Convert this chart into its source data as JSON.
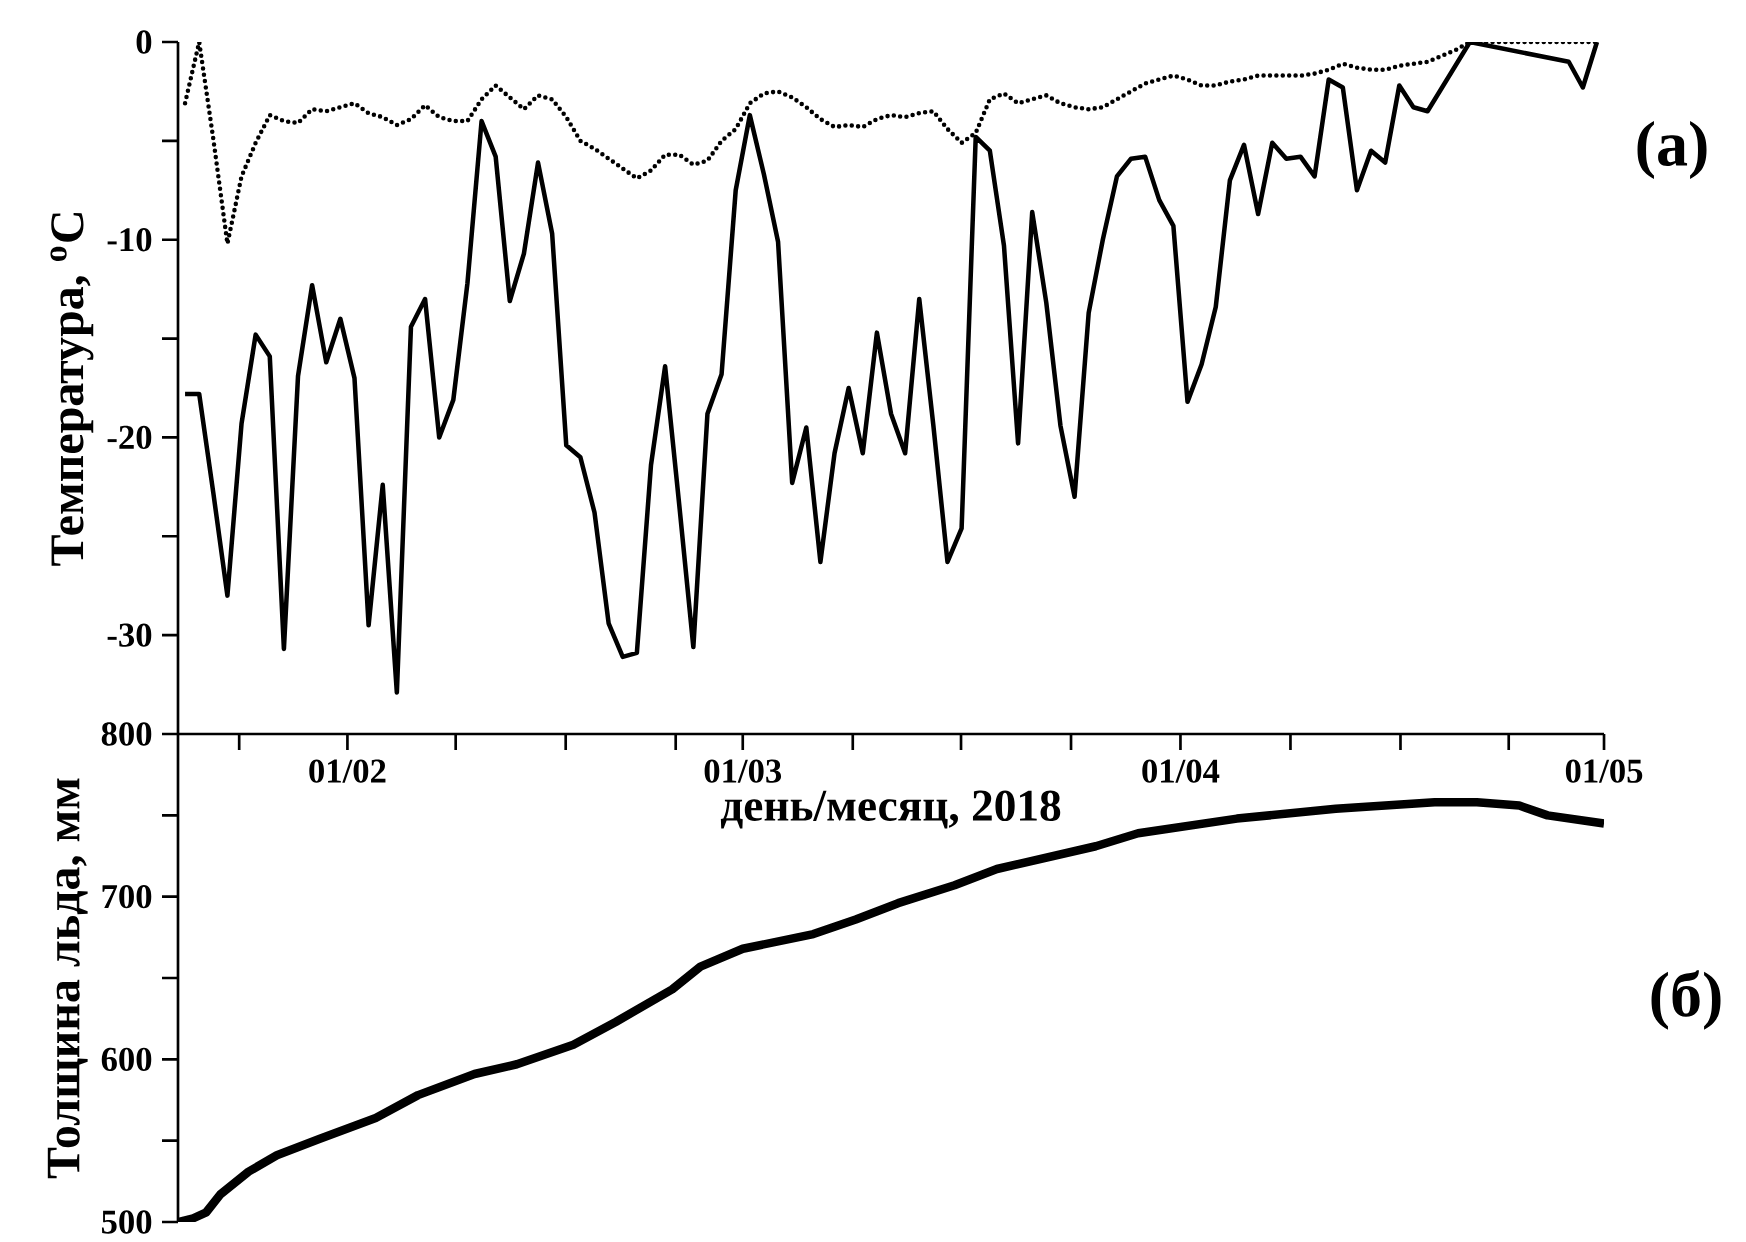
{
  "chart_data": [
    {
      "type": "line",
      "xlabel": "день/месяц, 2018",
      "ylabel": "Температура, $^{o}$C",
      "annotations": [
        "(a)"
      ],
      "xlim": [
        "2018-01-20",
        "2018-05-01"
      ],
      "xticks": [
        {
          "value": "2018-01-24T08:00",
          "label": null
        },
        {
          "value": "2018-02-01",
          "label": "01/02"
        },
        {
          "value": "2018-02-08T16:00",
          "label": null
        },
        {
          "value": "2018-02-16T11:00",
          "label": null
        },
        {
          "value": "2018-02-24T06:00",
          "label": null
        },
        {
          "value": "2018-03-01",
          "label": "01/03"
        },
        {
          "value": "2018-03-08T19:00",
          "label": null
        },
        {
          "value": "2018-03-16T11:00",
          "label": null
        },
        {
          "value": "2018-03-24T06:00",
          "label": null
        },
        {
          "value": "2018-04-01",
          "label": "01/04"
        },
        {
          "value": "2018-04-08T19:00",
          "label": null
        },
        {
          "value": "2018-04-16T14:00",
          "label": null
        },
        {
          "value": "2018-04-24T06:00",
          "label": null
        },
        {
          "value": "2018-05-01",
          "label": "01/05"
        }
      ],
      "ylim": [
        -35,
        0
      ],
      "yticks": [
        0,
        {
          "value": -5,
          "label": null
        },
        -10,
        {
          "value": -15,
          "label": null
        },
        -20,
        {
          "value": -25,
          "label": null
        },
        -30
      ],
      "series": [
        {
          "color": "#000000",
          "line_style": "solid",
          "x": [
            "2018-01-20T12:00",
            "2018-01-21T12:00",
            "2018-01-22T12:00",
            "2018-01-23T12:00",
            "2018-01-24T12:00",
            "2018-01-25T12:00",
            "2018-01-26T12:00",
            "2018-01-27T12:00",
            "2018-01-28T12:00",
            "2018-01-29T12:00",
            "2018-01-30T12:00",
            "2018-01-31T12:00",
            "2018-02-01T12:00",
            "2018-02-02T12:00",
            "2018-02-03T12:00",
            "2018-02-04T12:00",
            "2018-02-05T12:00",
            "2018-02-06T12:00",
            "2018-02-07T12:00",
            "2018-02-08T12:00",
            "2018-02-09T12:00",
            "2018-02-10T12:00",
            "2018-02-11T12:00",
            "2018-02-12T12:00",
            "2018-02-13T12:00",
            "2018-02-14T12:00",
            "2018-02-15T12:00",
            "2018-02-16T12:00",
            "2018-02-17T12:00",
            "2018-02-18T12:00",
            "2018-02-19T12:00",
            "2018-02-20T12:00",
            "2018-02-21T12:00",
            "2018-02-22T12:00",
            "2018-02-23T12:00",
            "2018-02-24T12:00",
            "2018-02-25T12:00",
            "2018-02-26T12:00",
            "2018-02-27T12:00",
            "2018-02-28T12:00",
            "2018-03-01T12:00",
            "2018-03-02T12:00",
            "2018-03-03T12:00",
            "2018-03-04T12:00",
            "2018-03-05T12:00",
            "2018-03-06T12:00",
            "2018-03-07T12:00",
            "2018-03-08T12:00",
            "2018-03-09T12:00",
            "2018-03-10T12:00",
            "2018-03-11T12:00",
            "2018-03-12T12:00",
            "2018-03-13T12:00",
            "2018-03-14T12:00",
            "2018-03-15T12:00",
            "2018-03-16T12:00",
            "2018-03-17T12:00",
            "2018-03-18T12:00",
            "2018-03-19T12:00",
            "2018-03-20T12:00",
            "2018-03-21T12:00",
            "2018-03-22T12:00",
            "2018-03-23T12:00",
            "2018-03-24T12:00",
            "2018-03-25T12:00",
            "2018-03-26T12:00",
            "2018-03-27T12:00",
            "2018-03-28T12:00",
            "2018-03-29T12:00",
            "2018-03-30T12:00",
            "2018-03-31T12:00",
            "2018-04-01T12:00",
            "2018-04-02T12:00",
            "2018-04-03T12:00",
            "2018-04-04T12:00",
            "2018-04-05T12:00",
            "2018-04-06T12:00",
            "2018-04-07T12:00",
            "2018-04-08T12:00",
            "2018-04-09T12:00",
            "2018-04-10T12:00",
            "2018-04-11T12:00",
            "2018-04-12T12:00",
            "2018-04-13T12:00",
            "2018-04-14T12:00",
            "2018-04-15T12:00",
            "2018-04-16T12:00",
            "2018-04-17T12:00",
            "2018-04-18T12:00",
            "2018-04-21T12:00",
            "2018-04-28T12:00",
            "2018-04-29T12:00",
            "2018-04-30T12:00"
          ],
          "values": [
            -17.8,
            -17.8,
            -22.8,
            -28.0,
            -19.3,
            -14.8,
            -15.9,
            -30.7,
            -16.9,
            -12.3,
            -16.2,
            -14.0,
            -17.0,
            -29.5,
            -22.4,
            -32.9,
            -14.4,
            -13.0,
            -20.0,
            -18.1,
            -12.2,
            -4.0,
            -5.8,
            -13.1,
            -10.7,
            -6.1,
            -9.7,
            -20.4,
            -21.0,
            -23.8,
            -29.4,
            -31.1,
            -30.9,
            -21.4,
            -16.4,
            -23.4,
            -30.6,
            -18.8,
            -16.8,
            -7.5,
            -3.7,
            -6.7,
            -10.1,
            -22.3,
            -19.5,
            -26.3,
            -20.8,
            -17.5,
            -20.8,
            -14.7,
            -18.8,
            -20.8,
            -13.0,
            -19.4,
            -26.3,
            -24.6,
            -4.8,
            -5.5,
            -10.3,
            -20.3,
            -8.6,
            -13.2,
            -19.4,
            -23.0,
            -13.7,
            -10.0,
            -6.8,
            -5.9,
            -5.8,
            -8.0,
            -9.3,
            -18.2,
            -16.3,
            -13.4,
            -7.0,
            -5.2,
            -8.7,
            -5.1,
            -5.9,
            -5.8,
            -6.8,
            -1.9,
            -2.3,
            -7.5,
            -5.5,
            -6.1,
            -2.2,
            -3.3,
            -3.5,
            0,
            -1.0,
            -2.3,
            0
          ]
        },
        {
          "color": "#000000",
          "line_style": "dotted",
          "x": [
            "2018-01-20T12:00",
            "2018-01-21T12:00",
            "2018-01-22T12:00",
            "2018-01-23T12:00",
            "2018-01-24T12:00",
            "2018-01-25T12:00",
            "2018-01-26T12:00",
            "2018-01-27T12:00",
            "2018-01-28T12:00",
            "2018-01-29T12:00",
            "2018-01-30T12:00",
            "2018-01-31T12:00",
            "2018-02-01T12:00",
            "2018-02-02T12:00",
            "2018-02-03T12:00",
            "2018-02-04T12:00",
            "2018-02-05T12:00",
            "2018-02-06T12:00",
            "2018-02-07T12:00",
            "2018-02-08T12:00",
            "2018-02-09T12:00",
            "2018-02-10T12:00",
            "2018-02-11T12:00",
            "2018-02-12T12:00",
            "2018-02-13T12:00",
            "2018-02-14T12:00",
            "2018-02-15T12:00",
            "2018-02-16T12:00",
            "2018-02-17T12:00",
            "2018-02-18T12:00",
            "2018-02-19T12:00",
            "2018-02-20T12:00",
            "2018-02-21T12:00",
            "2018-02-22T12:00",
            "2018-02-23T12:00",
            "2018-02-24T12:00",
            "2018-02-25T12:00",
            "2018-02-26T12:00",
            "2018-02-27T12:00",
            "2018-02-28T12:00",
            "2018-03-01T12:00",
            "2018-03-02T12:00",
            "2018-03-03T12:00",
            "2018-03-04T12:00",
            "2018-03-05T12:00",
            "2018-03-06T12:00",
            "2018-03-07T12:00",
            "2018-03-08T12:00",
            "2018-03-09T12:00",
            "2018-03-10T12:00",
            "2018-03-11T12:00",
            "2018-03-12T12:00",
            "2018-03-13T12:00",
            "2018-03-14T12:00",
            "2018-03-15T12:00",
            "2018-03-16T12:00",
            "2018-03-17T12:00",
            "2018-03-18T12:00",
            "2018-03-19T12:00",
            "2018-03-20T12:00",
            "2018-03-21T12:00",
            "2018-03-22T12:00",
            "2018-03-23T12:00",
            "2018-03-24T12:00",
            "2018-03-25T12:00",
            "2018-03-26T12:00",
            "2018-03-27T12:00",
            "2018-03-28T12:00",
            "2018-03-29T12:00",
            "2018-03-30T12:00",
            "2018-03-31T12:00",
            "2018-04-01T12:00",
            "2018-04-02T12:00",
            "2018-04-03T12:00",
            "2018-04-04T12:00",
            "2018-04-05T12:00",
            "2018-04-06T12:00",
            "2018-04-07T12:00",
            "2018-04-08T12:00",
            "2018-04-09T12:00",
            "2018-04-10T12:00",
            "2018-04-11T12:00",
            "2018-04-12T12:00",
            "2018-04-13T12:00",
            "2018-04-14T12:00",
            "2018-04-15T12:00",
            "2018-04-16T12:00",
            "2018-04-17T12:00",
            "2018-04-18T12:00",
            "2018-04-19T12:00",
            "2018-04-20T12:00",
            "2018-04-21T12:00",
            "2018-04-30T12:00"
          ],
          "values": [
            -3.1,
            0,
            -4.9,
            -10.2,
            -6.8,
            -5.1,
            -3.7,
            -4.0,
            -4.1,
            -3.4,
            -3.5,
            -3.3,
            -3.1,
            -3.6,
            -3.8,
            -4.2,
            -3.9,
            -3.2,
            -3.8,
            -4.0,
            -4.0,
            -2.9,
            -2.2,
            -2.8,
            -3.4,
            -2.7,
            -2.9,
            -3.8,
            -5.0,
            -5.4,
            -5.9,
            -6.4,
            -6.9,
            -6.5,
            -5.7,
            -5.7,
            -6.2,
            -6.0,
            -5.0,
            -4.4,
            -3.1,
            -2.6,
            -2.5,
            -2.8,
            -3.3,
            -3.9,
            -4.3,
            -4.2,
            -4.3,
            -3.9,
            -3.7,
            -3.8,
            -3.6,
            -3.5,
            -4.4,
            -5.1,
            -4.6,
            -2.9,
            -2.6,
            -3.1,
            -2.9,
            -2.7,
            -3.1,
            -3.3,
            -3.4,
            -3.3,
            -2.9,
            -2.5,
            -2.1,
            -1.9,
            -1.7,
            -1.9,
            -2.2,
            -2.2,
            -2.0,
            -1.9,
            -1.7,
            -1.7,
            -1.7,
            -1.7,
            -1.6,
            -1.4,
            -1.1,
            -1.3,
            -1.4,
            -1.4,
            -1.2,
            -1.1,
            -1.0,
            -0.7,
            -0.4,
            0,
            0
          ]
        }
      ]
    },
    {
      "type": "line",
      "ylabel": "Толщина льда, мм",
      "annotations": [
        "(б)"
      ],
      "tick_labels": "y",
      "xlim": [
        "2018-01-20",
        "2018-05-01"
      ],
      "ylim": [
        500,
        800
      ],
      "yticks": [
        500,
        {
          "value": 550,
          "label": null
        },
        600,
        {
          "value": 650,
          "label": null
        },
        700,
        {
          "value": 750,
          "label": null
        },
        800
      ],
      "series": [
        {
          "color": "#000000",
          "x": [
            "2018-01-20",
            "2018-01-21",
            "2018-01-22",
            "2018-01-23",
            "2018-01-25",
            "2018-01-27",
            "2018-01-30",
            "2018-02-03",
            "2018-02-06",
            "2018-02-10",
            "2018-02-13",
            "2018-02-17",
            "2018-02-20",
            "2018-02-24",
            "2018-02-26",
            "2018-03-01",
            "2018-03-06",
            "2018-03-09",
            "2018-03-12",
            "2018-03-16",
            "2018-03-19",
            "2018-03-26",
            "2018-03-29",
            "2018-04-05",
            "2018-04-12",
            "2018-04-19",
            "2018-04-22",
            "2018-04-25",
            "2018-04-27",
            "2018-05-01"
          ],
          "values": [
            500,
            502,
            506,
            517,
            531,
            541,
            551,
            564,
            578,
            591,
            597,
            609,
            623,
            643,
            657,
            668,
            677,
            686,
            696,
            707,
            717,
            731,
            739,
            748,
            754,
            758,
            758,
            756,
            750,
            745
          ]
        }
      ]
    }
  ]
}
